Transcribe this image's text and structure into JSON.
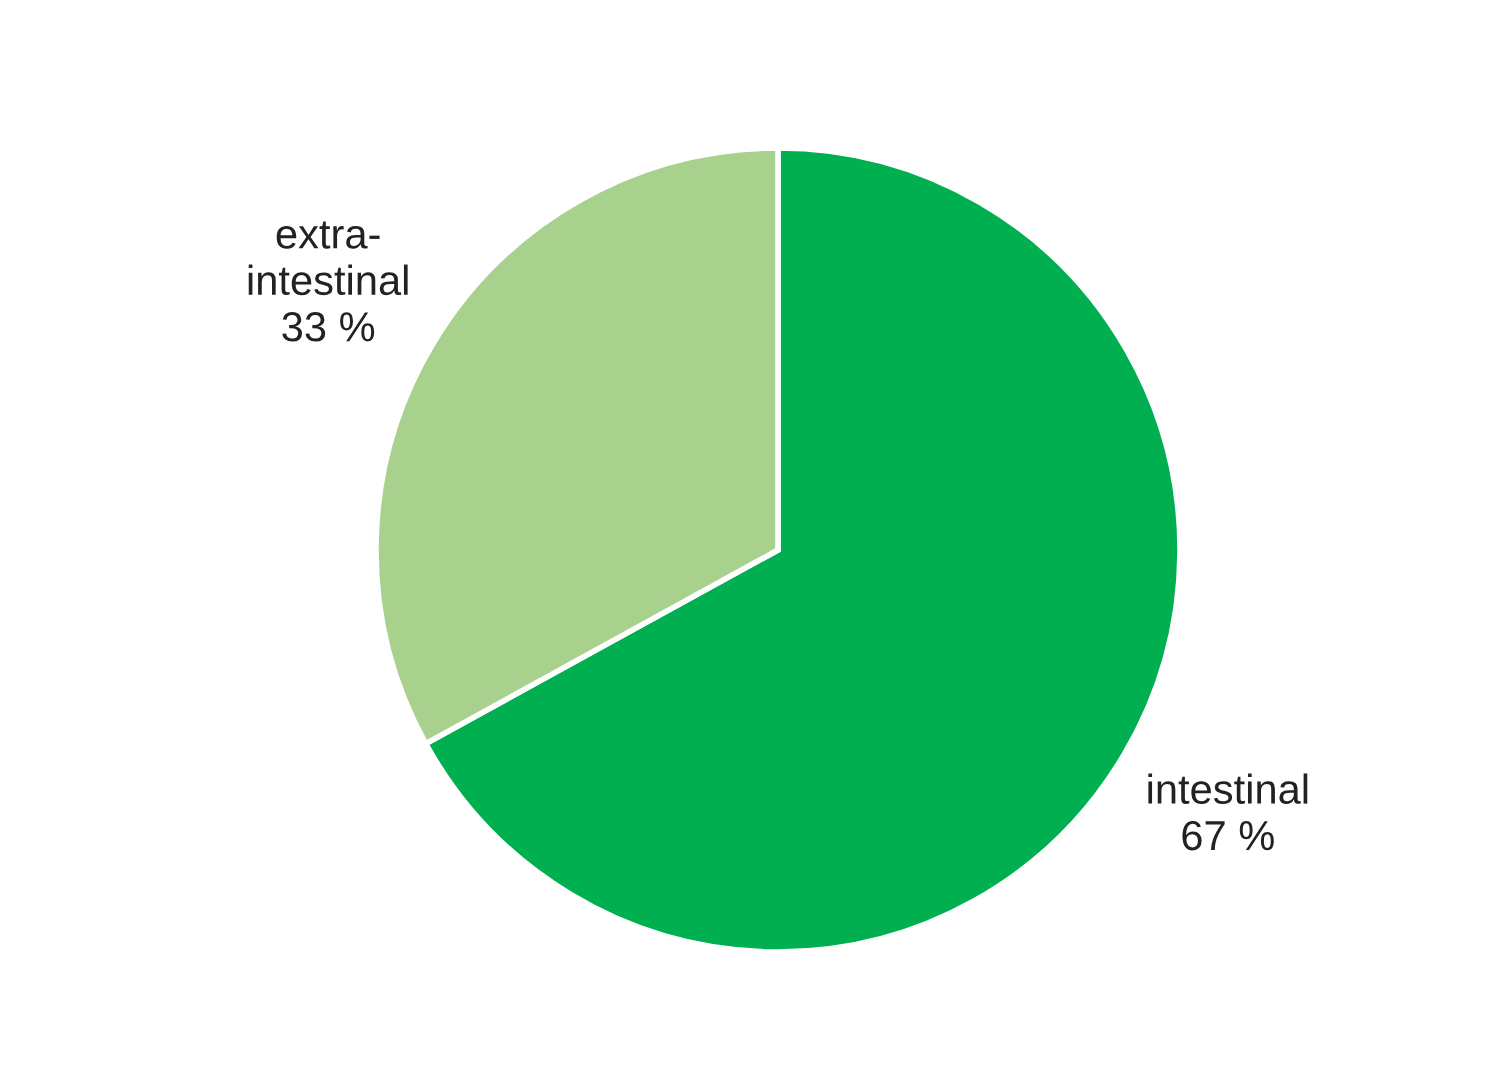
{
  "chart_data": {
    "type": "pie",
    "categories": [
      "intestinal",
      "extra-\nintestinal"
    ],
    "values": [
      67,
      33
    ],
    "colors": [
      "#00b050",
      "#a9d18e"
    ],
    "value_labels": [
      "67 %",
      "33 %"
    ],
    "legend": false
  }
}
